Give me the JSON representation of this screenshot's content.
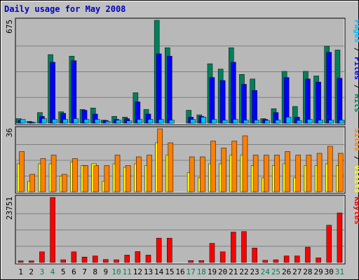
{
  "colors": {
    "outer_bg": "#C0C0C0",
    "panel_bg": "#B8B8B8",
    "grid": "#808080",
    "title": "#0000C0",
    "hits": "#00805C",
    "files": "#0000FF",
    "pages": "#00C0FF",
    "visits": "#FFFF00",
    "sites": "#FF8000",
    "kbytes": "#FF0000",
    "weekend_label": "#00805C",
    "weekday_label": "#000000",
    "ylabel": "#000000"
  },
  "chart_data": {
    "type": "bar",
    "title": "Daily usage for May 2008",
    "categories": [
      "1",
      "2",
      "3",
      "4",
      "5",
      "6",
      "7",
      "8",
      "9",
      "10",
      "11",
      "12",
      "13",
      "14",
      "15",
      "16",
      "17",
      "18",
      "19",
      "20",
      "21",
      "22",
      "23",
      "24",
      "25",
      "26",
      "27",
      "28",
      "29",
      "30",
      "31"
    ],
    "weekend_days": [
      "3",
      "4",
      "10",
      "11",
      "17",
      "18",
      "24",
      "25",
      "31"
    ],
    "panels": [
      {
        "name": "hits-files-pages",
        "ymax": 675,
        "ymax_label": "675",
        "right_labels": [
          {
            "text": "Pages",
            "color_key": "pages"
          },
          {
            "text": " / ",
            "color_key": "ylabel"
          },
          {
            "text": "Files",
            "color_key": "files"
          },
          {
            "text": " / ",
            "color_key": "ylabel"
          },
          {
            "text": "Hits",
            "color_key": "hits"
          }
        ],
        "series": [
          {
            "name": "Hits",
            "color_key": "hits",
            "offset": 0,
            "values": [
              30,
              12,
              70,
              450,
              75,
              440,
              90,
              100,
              20,
              45,
              40,
              200,
              90,
              675,
              495,
              0,
              85,
              55,
              390,
              355,
              495,
              320,
              290,
              30,
              95,
              340,
              110,
              340,
              310,
              505,
              480
            ]
          },
          {
            "name": "Files",
            "color_key": "files",
            "offset": 1,
            "values": [
              18,
              8,
              45,
              400,
              65,
              410,
              85,
              60,
              18,
              25,
              30,
              140,
              60,
              455,
              440,
              0,
              40,
              45,
              300,
              280,
              400,
              255,
              215,
              25,
              70,
              300,
              40,
              290,
              270,
              465,
              295
            ]
          },
          {
            "name": "Pages",
            "color_key": "pages",
            "offset": 2,
            "values": [
              25,
              5,
              30,
              25,
              25,
              30,
              25,
              25,
              12,
              20,
              15,
              25,
              25,
              25,
              20,
              0,
              25,
              40,
              25,
              20,
              25,
              20,
              20,
              18,
              20,
              40,
              18,
              25,
              20,
              20,
              20
            ]
          }
        ]
      },
      {
        "name": "visits-sites",
        "ymax": 36,
        "ymax_label": "36",
        "right_labels": [
          {
            "text": "Sites",
            "color_key": "sites"
          },
          {
            "text": " / ",
            "color_key": "ylabel"
          },
          {
            "text": "Visits",
            "color_key": "visits"
          }
        ],
        "series": [
          {
            "name": "Visits",
            "color_key": "visits",
            "offset": 0,
            "values": [
              16,
              6,
              16,
              16,
              9,
              17,
              15,
              16,
              6,
              16,
              14,
              16,
              15,
              28,
              21,
              0,
              11,
              8,
              16,
              16,
              21,
              21,
              15,
              8,
              15,
              16,
              8,
              15,
              15,
              16,
              15
            ]
          },
          {
            "name": "Sites",
            "color_key": "sites",
            "offset": 1,
            "values": [
              23,
              10,
              19,
              21,
              10,
              19,
              15,
              15,
              15,
              21,
              15,
              20,
              21,
              36,
              28,
              0,
              20,
              20,
              29,
              25,
              29,
              32,
              21,
              21,
              21,
              23,
              21,
              21,
              22,
              26,
              22
            ]
          }
        ]
      },
      {
        "name": "kbytes",
        "ymax": 23751,
        "ymax_label": "23751",
        "right_labels": [
          {
            "text": "KBytes",
            "color_key": "kbytes"
          }
        ],
        "series": [
          {
            "name": "KBytes",
            "color_key": "kbytes",
            "offset": 0,
            "values": [
              600,
              600,
              3900,
              23751,
              1000,
              3900,
              2000,
              2400,
              1100,
              1000,
              2700,
              4000,
              2700,
              8900,
              8900,
              0,
              700,
              700,
              7000,
              3900,
              11100,
              11300,
              5300,
              800,
              1000,
              2400,
              2400,
              5600,
              1700,
              13600,
              18100
            ]
          }
        ]
      }
    ]
  }
}
